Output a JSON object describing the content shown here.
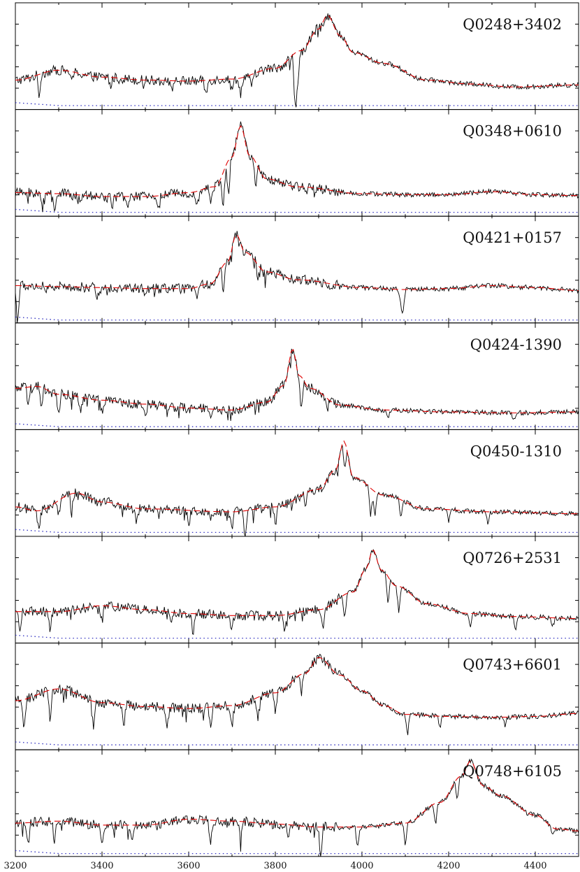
{
  "chart_data": {
    "type": "line",
    "layout": "8 vertically stacked panels sharing one wavelength x-axis",
    "x_axis": {
      "xlim": [
        3200,
        4500
      ],
      "tick_labels": [
        "3200",
        "3400",
        "3600",
        "3800",
        "4000",
        "4200",
        "4400"
      ]
    },
    "series_styles": {
      "spectrum": {
        "color": "#000000",
        "style": "solid"
      },
      "continuum_fit": {
        "color": "#e00000",
        "style": "dashed"
      },
      "error": {
        "color": "#3030c0",
        "style": "dotted"
      }
    },
    "panels": [
      {
        "label": "Q0248+3402",
        "baseline": 0.3,
        "error_level": 0.04,
        "fit": [
          [
            3200,
            0.3
          ],
          [
            3300,
            0.4
          ],
          [
            3400,
            0.33
          ],
          [
            3500,
            0.3
          ],
          [
            3600,
            0.29
          ],
          [
            3700,
            0.31
          ],
          [
            3800,
            0.42
          ],
          [
            3860,
            0.6
          ],
          [
            3900,
            0.82
          ],
          [
            3920,
            0.96
          ],
          [
            3950,
            0.75
          ],
          [
            3980,
            0.58
          ],
          [
            4050,
            0.47
          ],
          [
            4150,
            0.3
          ],
          [
            4250,
            0.26
          ],
          [
            4350,
            0.23
          ],
          [
            4500,
            0.25
          ]
        ],
        "absorption": [
          [
            3255,
            0.22
          ],
          [
            3330,
            0.12
          ],
          [
            3420,
            0.1
          ],
          [
            3560,
            0.12
          ],
          [
            3640,
            0.16
          ],
          [
            3700,
            0.14
          ],
          [
            3720,
            0.18
          ],
          [
            3745,
            0.16
          ],
          [
            3845,
            0.35
          ],
          [
            3848,
            0.38
          ],
          [
            3853,
            0.25
          ]
        ]
      },
      {
        "label": "Q0348+0610",
        "baseline": 0.22,
        "error_level": 0.04,
        "fit": [
          [
            3200,
            0.24
          ],
          [
            3300,
            0.23
          ],
          [
            3400,
            0.2
          ],
          [
            3500,
            0.2
          ],
          [
            3600,
            0.24
          ],
          [
            3660,
            0.3
          ],
          [
            3700,
            0.6
          ],
          [
            3720,
            0.92
          ],
          [
            3740,
            0.62
          ],
          [
            3780,
            0.38
          ],
          [
            3850,
            0.3
          ],
          [
            4000,
            0.23
          ],
          [
            4100,
            0.22
          ],
          [
            4200,
            0.22
          ],
          [
            4300,
            0.25
          ],
          [
            4400,
            0.22
          ],
          [
            4500,
            0.21
          ]
        ],
        "absorption": [
          [
            3262,
            0.18
          ],
          [
            3290,
            0.14
          ],
          [
            3350,
            0.12
          ],
          [
            3460,
            0.14
          ],
          [
            3530,
            0.12
          ],
          [
            3620,
            0.16
          ],
          [
            3650,
            0.16
          ],
          [
            3680,
            0.34
          ],
          [
            3692,
            0.38
          ],
          [
            3755,
            0.26
          ]
        ]
      },
      {
        "label": "Q0421+0157",
        "baseline": 0.36,
        "error_level": 0.03,
        "fit": [
          [
            3200,
            0.38
          ],
          [
            3300,
            0.37
          ],
          [
            3400,
            0.36
          ],
          [
            3500,
            0.35
          ],
          [
            3600,
            0.35
          ],
          [
            3650,
            0.4
          ],
          [
            3690,
            0.62
          ],
          [
            3710,
            0.9
          ],
          [
            3730,
            0.72
          ],
          [
            3780,
            0.52
          ],
          [
            3850,
            0.44
          ],
          [
            4000,
            0.36
          ],
          [
            4100,
            0.34
          ],
          [
            4200,
            0.35
          ],
          [
            4300,
            0.38
          ],
          [
            4400,
            0.36
          ],
          [
            4500,
            0.33
          ]
        ],
        "absorption": [
          [
            3205,
            0.4
          ],
          [
            3270,
            0.1
          ],
          [
            3390,
            0.1
          ],
          [
            3500,
            0.1
          ],
          [
            3620,
            0.12
          ],
          [
            3680,
            0.26
          ],
          [
            3760,
            0.16
          ],
          [
            4090,
            0.18
          ],
          [
            4095,
            0.2
          ]
        ]
      },
      {
        "label": "Q0424-1390",
        "baseline": 0.22,
        "error_level": 0.03,
        "fit": [
          [
            3200,
            0.42
          ],
          [
            3250,
            0.44
          ],
          [
            3300,
            0.36
          ],
          [
            3400,
            0.3
          ],
          [
            3500,
            0.26
          ],
          [
            3600,
            0.22
          ],
          [
            3700,
            0.2
          ],
          [
            3780,
            0.28
          ],
          [
            3820,
            0.45
          ],
          [
            3840,
            0.82
          ],
          [
            3855,
            0.55
          ],
          [
            3880,
            0.42
          ],
          [
            3950,
            0.25
          ],
          [
            4050,
            0.2
          ],
          [
            4200,
            0.18
          ],
          [
            4350,
            0.17
          ],
          [
            4500,
            0.18
          ]
        ],
        "absorption": [
          [
            3230,
            0.2
          ],
          [
            3260,
            0.25
          ],
          [
            3300,
            0.2
          ],
          [
            3350,
            0.15
          ],
          [
            3400,
            0.12
          ],
          [
            3500,
            0.12
          ],
          [
            3650,
            0.12
          ],
          [
            3860,
            0.35
          ],
          [
            3920,
            0.1
          ],
          [
            4060,
            0.1
          ],
          [
            4350,
            0.08
          ]
        ]
      },
      {
        "label": "Q0450-1310",
        "baseline": 0.28,
        "error_level": 0.04,
        "fit": [
          [
            3200,
            0.3
          ],
          [
            3250,
            0.26
          ],
          [
            3340,
            0.44
          ],
          [
            3400,
            0.35
          ],
          [
            3500,
            0.28
          ],
          [
            3700,
            0.25
          ],
          [
            3800,
            0.3
          ],
          [
            3900,
            0.48
          ],
          [
            3940,
            0.68
          ],
          [
            3958,
            0.97
          ],
          [
            3980,
            0.6
          ],
          [
            4050,
            0.42
          ],
          [
            4150,
            0.28
          ],
          [
            4300,
            0.25
          ],
          [
            4500,
            0.23
          ]
        ],
        "absorption": [
          [
            3255,
            0.18
          ],
          [
            3300,
            0.16
          ],
          [
            3330,
            0.2
          ],
          [
            3480,
            0.14
          ],
          [
            3600,
            0.16
          ],
          [
            3700,
            0.2
          ],
          [
            3730,
            0.3
          ],
          [
            3800,
            0.2
          ],
          [
            3870,
            0.16
          ],
          [
            3960,
            0.28
          ],
          [
            4020,
            0.3
          ],
          [
            4030,
            0.26
          ],
          [
            4090,
            0.2
          ],
          [
            4200,
            0.12
          ],
          [
            4290,
            0.12
          ]
        ]
      },
      {
        "label": "Q0726+2531",
        "baseline": 0.3,
        "error_level": 0.05,
        "fit": [
          [
            3200,
            0.32
          ],
          [
            3300,
            0.32
          ],
          [
            3400,
            0.38
          ],
          [
            3500,
            0.34
          ],
          [
            3600,
            0.3
          ],
          [
            3700,
            0.28
          ],
          [
            3800,
            0.28
          ],
          [
            3900,
            0.34
          ],
          [
            3980,
            0.52
          ],
          [
            4010,
            0.76
          ],
          [
            4025,
            0.95
          ],
          [
            4045,
            0.74
          ],
          [
            4080,
            0.58
          ],
          [
            4150,
            0.4
          ],
          [
            4250,
            0.3
          ],
          [
            4350,
            0.27
          ],
          [
            4500,
            0.25
          ]
        ],
        "absorption": [
          [
            3210,
            0.18
          ],
          [
            3280,
            0.2
          ],
          [
            3400,
            0.18
          ],
          [
            3560,
            0.16
          ],
          [
            3610,
            0.22
          ],
          [
            3700,
            0.16
          ],
          [
            3820,
            0.16
          ],
          [
            3910,
            0.22
          ],
          [
            3960,
            0.26
          ],
          [
            4060,
            0.28
          ],
          [
            4085,
            0.26
          ],
          [
            4250,
            0.14
          ],
          [
            4355,
            0.14
          ],
          [
            4440,
            0.1
          ]
        ]
      },
      {
        "label": "Q0743+6601",
        "baseline": 0.38,
        "error_level": 0.05,
        "fit": [
          [
            3200,
            0.5
          ],
          [
            3300,
            0.62
          ],
          [
            3400,
            0.48
          ],
          [
            3500,
            0.44
          ],
          [
            3600,
            0.42
          ],
          [
            3700,
            0.45
          ],
          [
            3800,
            0.58
          ],
          [
            3870,
            0.78
          ],
          [
            3900,
            0.94
          ],
          [
            3950,
            0.76
          ],
          [
            4000,
            0.6
          ],
          [
            4050,
            0.45
          ],
          [
            4100,
            0.36
          ],
          [
            4200,
            0.34
          ],
          [
            4300,
            0.33
          ],
          [
            4400,
            0.34
          ],
          [
            4500,
            0.37
          ]
        ],
        "absorption": [
          [
            3220,
            0.3
          ],
          [
            3280,
            0.32
          ],
          [
            3380,
            0.3
          ],
          [
            3450,
            0.22
          ],
          [
            3550,
            0.2
          ],
          [
            3650,
            0.22
          ],
          [
            3700,
            0.22
          ],
          [
            3760,
            0.22
          ],
          [
            3800,
            0.22
          ],
          [
            3860,
            0.2
          ],
          [
            4105,
            0.22
          ],
          [
            4180,
            0.12
          ],
          [
            4330,
            0.08
          ]
        ]
      },
      {
        "label": "Q0748+6105",
        "baseline": 0.28,
        "error_level": 0.03,
        "fit": [
          [
            3200,
            0.34
          ],
          [
            3300,
            0.36
          ],
          [
            3400,
            0.32
          ],
          [
            3500,
            0.32
          ],
          [
            3600,
            0.38
          ],
          [
            3700,
            0.36
          ],
          [
            3800,
            0.33
          ],
          [
            3900,
            0.3
          ],
          [
            4000,
            0.3
          ],
          [
            4100,
            0.34
          ],
          [
            4180,
            0.55
          ],
          [
            4230,
            0.82
          ],
          [
            4250,
            0.97
          ],
          [
            4280,
            0.72
          ],
          [
            4320,
            0.62
          ],
          [
            4400,
            0.42
          ],
          [
            4450,
            0.28
          ],
          [
            4500,
            0.26
          ]
        ],
        "absorption": [
          [
            3230,
            0.24
          ],
          [
            3290,
            0.2
          ],
          [
            3400,
            0.18
          ],
          [
            3470,
            0.14
          ],
          [
            3650,
            0.26
          ],
          [
            3720,
            0.18
          ],
          [
            3830,
            0.16
          ],
          [
            3905,
            0.35
          ],
          [
            3990,
            0.22
          ],
          [
            4100,
            0.22
          ],
          [
            4170,
            0.22
          ],
          [
            4220,
            0.22
          ],
          [
            4440,
            0.1
          ]
        ]
      }
    ]
  }
}
